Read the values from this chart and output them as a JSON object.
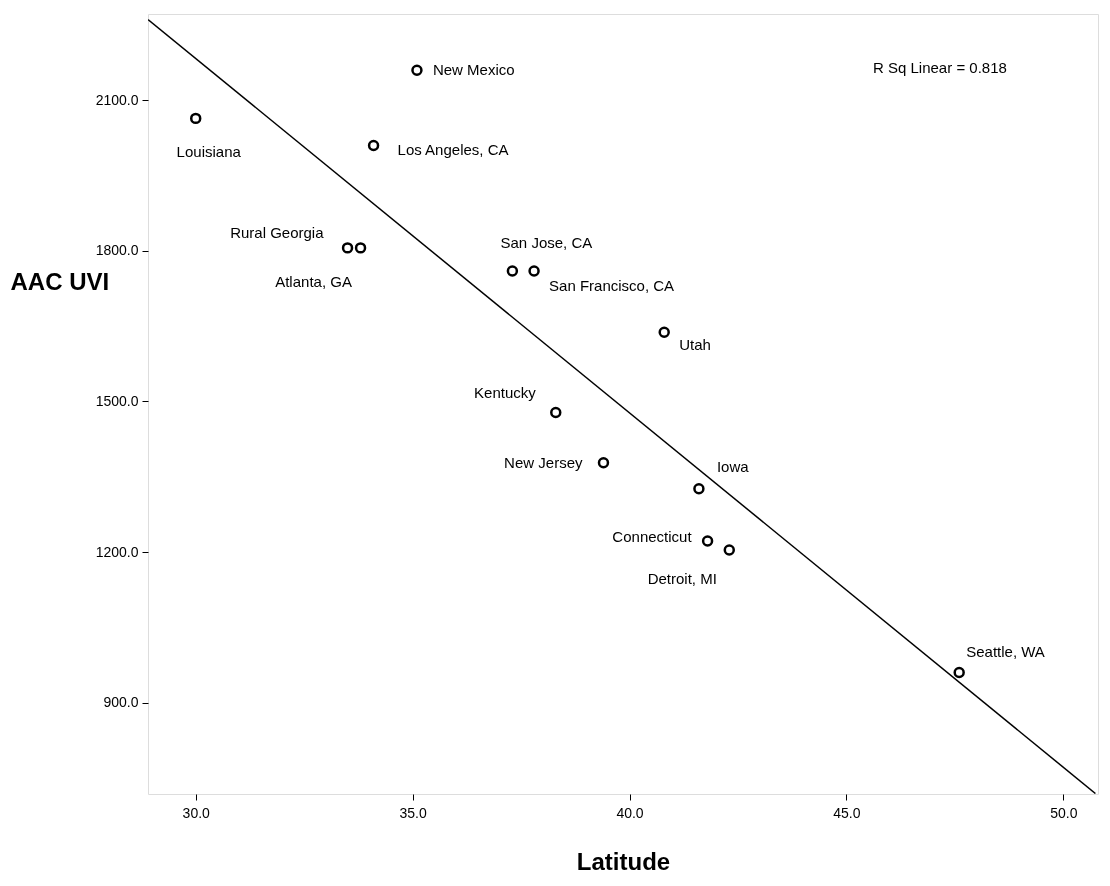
{
  "chart_data": {
    "type": "scatter",
    "xlabel": "Latitude",
    "ylabel": "AAC UVI",
    "xlim": [
      28.9,
      50.8
    ],
    "ylim": [
      718,
      2272
    ],
    "xticks": [
      {
        "value": 30,
        "label": "30.0"
      },
      {
        "value": 35,
        "label": "35.0"
      },
      {
        "value": 40,
        "label": "40.0"
      },
      {
        "value": 45,
        "label": "45.0"
      },
      {
        "value": 50,
        "label": "50.0"
      }
    ],
    "yticks": [
      {
        "value": 900,
        "label": "900.0"
      },
      {
        "value": 1200,
        "label": "1200.0"
      },
      {
        "value": 1500,
        "label": "1500.0"
      },
      {
        "value": 1800,
        "label": "1800.0"
      },
      {
        "value": 2100,
        "label": "2100.0"
      }
    ],
    "grid": false,
    "series": [
      {
        "color": "#000000",
        "marker": "circle",
        "x": [
          30.0,
          35.1,
          34.1,
          33.5,
          33.8,
          37.3,
          37.8,
          40.8,
          38.3,
          39.4,
          41.6,
          41.8,
          42.3,
          47.6
        ],
        "values": [
          2064,
          2160,
          2010,
          1806,
          1806,
          1760,
          1760,
          1638,
          1478,
          1378,
          1326,
          1222,
          1204,
          960
        ]
      },
      {
        "type": "line",
        "color": "#000000",
        "line_style": "solid",
        "x": [
          28.9,
          50.74
        ],
        "values": [
          2261,
          719
        ]
      }
    ],
    "annotations": [
      {
        "text": "Louisiana",
        "x": 30.0,
        "y": 2064
      },
      {
        "text": "New Mexico",
        "x": 35.1,
        "y": 2160
      },
      {
        "text": "Los Angeles, CA",
        "x": 34.1,
        "y": 2010
      },
      {
        "text": "Rural Georgia",
        "x": 33.5,
        "y": 1806
      },
      {
        "text": "Atlanta, GA",
        "x": 33.8,
        "y": 1806
      },
      {
        "text": "San Jose, CA",
        "x": 37.3,
        "y": 1760
      },
      {
        "text": "San Francisco, CA",
        "x": 37.8,
        "y": 1760
      },
      {
        "text": "Utah",
        "x": 40.8,
        "y": 1638
      },
      {
        "text": "Kentucky",
        "x": 38.3,
        "y": 1478
      },
      {
        "text": "New Jersey",
        "x": 39.4,
        "y": 1378
      },
      {
        "text": "Iowa",
        "x": 41.6,
        "y": 1326
      },
      {
        "text": "Connecticut",
        "x": 41.8,
        "y": 1222
      },
      {
        "text": "Detroit, MI",
        "x": 42.3,
        "y": 1204
      },
      {
        "text": "Seattle, WA",
        "x": 47.6,
        "y": 960
      },
      "R Sq Linear = 0.818"
    ]
  }
}
